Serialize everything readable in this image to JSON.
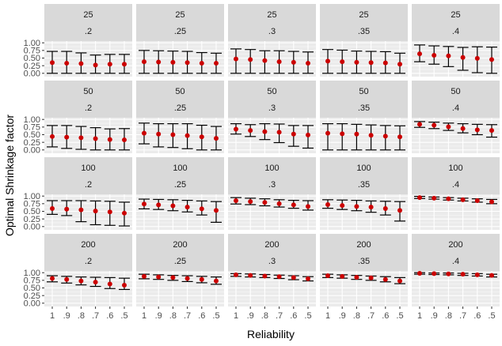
{
  "chart_data": {
    "type": "scatter",
    "subtype": "faceted point-range (points with error bars)",
    "xlabel": "Reliability",
    "ylabel": "Optimal Shrinkage factor",
    "x_categories": [
      "1",
      ".9",
      ".8",
      ".7",
      ".6",
      ".5"
    ],
    "y_ticks": [
      "0.00",
      "0.25",
      "0.50",
      "0.75",
      "1.00"
    ],
    "ylim": [
      0,
      1
    ],
    "grid": true,
    "point_color": "#cc0000",
    "errorbar_color": "#000000",
    "panel_background": "#ebebeb",
    "strip_background": "#d9d9d9",
    "facet_rows": [
      "25",
      "50",
      "100",
      "200"
    ],
    "facet_cols": [
      ".2",
      ".25",
      ".3",
      ".35",
      ".4"
    ],
    "panels": [
      {
        "row": "25",
        "col": ".2",
        "mean": [
          0.35,
          0.33,
          0.32,
          0.27,
          0.3,
          0.3
        ],
        "lower": [
          0.0,
          0.0,
          0.0,
          0.0,
          0.0,
          0.0
        ],
        "upper": [
          0.72,
          0.72,
          0.67,
          0.6,
          0.62,
          0.62
        ]
      },
      {
        "row": "25",
        "col": ".25",
        "mean": [
          0.38,
          0.37,
          0.36,
          0.35,
          0.33,
          0.33
        ],
        "lower": [
          0.0,
          0.0,
          0.0,
          0.0,
          0.0,
          0.0
        ],
        "upper": [
          0.75,
          0.74,
          0.73,
          0.72,
          0.68,
          0.66
        ]
      },
      {
        "row": "25",
        "col": ".3",
        "mean": [
          0.47,
          0.45,
          0.42,
          0.38,
          0.36,
          0.33
        ],
        "lower": [
          0.0,
          0.0,
          0.0,
          0.0,
          0.0,
          0.0
        ],
        "upper": [
          0.8,
          0.78,
          0.74,
          0.74,
          0.72,
          0.7
        ]
      },
      {
        "row": "25",
        "col": ".35",
        "mean": [
          0.4,
          0.38,
          0.36,
          0.35,
          0.34,
          0.3
        ],
        "lower": [
          0.0,
          0.0,
          0.0,
          0.0,
          0.0,
          0.0
        ],
        "upper": [
          0.78,
          0.76,
          0.73,
          0.72,
          0.71,
          0.66
        ]
      },
      {
        "row": "25",
        "col": ".4",
        "mean": [
          0.64,
          0.59,
          0.57,
          0.52,
          0.49,
          0.45
        ],
        "lower": [
          0.38,
          0.3,
          0.22,
          0.1,
          0.02,
          0.0
        ],
        "upper": [
          0.93,
          0.9,
          0.88,
          0.85,
          0.87,
          0.86
        ]
      },
      {
        "row": "50",
        "col": ".2",
        "mean": [
          0.44,
          0.42,
          0.4,
          0.37,
          0.34,
          0.33
        ],
        "lower": [
          0.1,
          0.05,
          0.02,
          0.0,
          0.0,
          0.0
        ],
        "upper": [
          0.8,
          0.8,
          0.77,
          0.73,
          0.69,
          0.7
        ]
      },
      {
        "row": "50",
        "col": ".25",
        "mean": [
          0.55,
          0.52,
          0.5,
          0.47,
          0.43,
          0.38
        ],
        "lower": [
          0.2,
          0.1,
          0.08,
          0.04,
          0.0,
          0.0
        ],
        "upper": [
          0.88,
          0.86,
          0.86,
          0.86,
          0.81,
          0.77
        ]
      },
      {
        "row": "50",
        "col": ".3",
        "mean": [
          0.68,
          0.64,
          0.6,
          0.58,
          0.52,
          0.49
        ],
        "lower": [
          0.52,
          0.44,
          0.34,
          0.24,
          0.12,
          0.06
        ],
        "upper": [
          0.86,
          0.83,
          0.86,
          0.85,
          0.8,
          0.8
        ]
      },
      {
        "row": "50",
        "col": ".35",
        "mean": [
          0.55,
          0.53,
          0.52,
          0.48,
          0.45,
          0.43
        ],
        "lower": [
          0.0,
          0.0,
          0.0,
          0.0,
          0.0,
          0.0
        ],
        "upper": [
          0.86,
          0.86,
          0.84,
          0.82,
          0.8,
          0.79
        ]
      },
      {
        "row": "50",
        "col": ".4",
        "mean": [
          0.84,
          0.81,
          0.76,
          0.7,
          0.66,
          0.64
        ],
        "lower": [
          0.74,
          0.7,
          0.64,
          0.56,
          0.5,
          0.42
        ],
        "upper": [
          0.93,
          0.91,
          0.88,
          0.86,
          0.84,
          0.83
        ]
      },
      {
        "row": "100",
        "col": ".2",
        "mean": [
          0.59,
          0.57,
          0.55,
          0.51,
          0.48,
          0.44
        ],
        "lower": [
          0.4,
          0.36,
          0.16,
          0.06,
          0.04,
          0.02
        ],
        "upper": [
          0.85,
          0.85,
          0.85,
          0.84,
          0.83,
          0.8
        ]
      },
      {
        "row": "100",
        "col": ".25",
        "mean": [
          0.74,
          0.71,
          0.68,
          0.64,
          0.58,
          0.53
        ],
        "lower": [
          0.58,
          0.56,
          0.52,
          0.48,
          0.38,
          0.14
        ],
        "upper": [
          0.9,
          0.89,
          0.88,
          0.86,
          0.84,
          0.82
        ]
      },
      {
        "row": "100",
        "col": ".3",
        "mean": [
          0.85,
          0.82,
          0.79,
          0.75,
          0.71,
          0.66
        ],
        "lower": [
          0.74,
          0.72,
          0.68,
          0.64,
          0.6,
          0.54
        ],
        "upper": [
          0.95,
          0.93,
          0.91,
          0.88,
          0.86,
          0.85
        ]
      },
      {
        "row": "100",
        "col": ".35",
        "mean": [
          0.72,
          0.69,
          0.66,
          0.64,
          0.59,
          0.53
        ],
        "lower": [
          0.6,
          0.56,
          0.52,
          0.47,
          0.38,
          0.18
        ],
        "upper": [
          0.88,
          0.87,
          0.86,
          0.84,
          0.83,
          0.82
        ]
      },
      {
        "row": "100",
        "col": ".4",
        "mean": [
          0.95,
          0.93,
          0.91,
          0.88,
          0.85,
          0.81
        ],
        "lower": [
          0.92,
          0.9,
          0.87,
          0.84,
          0.8,
          0.75
        ],
        "upper": [
          0.99,
          0.97,
          0.95,
          0.93,
          0.91,
          0.89
        ]
      },
      {
        "row": "200",
        "col": ".2",
        "mean": [
          0.81,
          0.78,
          0.73,
          0.69,
          0.63,
          0.59
        ],
        "lower": [
          0.7,
          0.66,
          0.6,
          0.55,
          0.48,
          0.45
        ],
        "upper": [
          0.9,
          0.88,
          0.86,
          0.85,
          0.84,
          0.82
        ]
      },
      {
        "row": "200",
        "col": ".25",
        "mean": [
          0.88,
          0.86,
          0.84,
          0.81,
          0.78,
          0.73
        ],
        "lower": [
          0.8,
          0.78,
          0.75,
          0.71,
          0.67,
          0.62
        ],
        "upper": [
          0.95,
          0.93,
          0.91,
          0.9,
          0.88,
          0.86
        ]
      },
      {
        "row": "200",
        "col": ".3",
        "mean": [
          0.93,
          0.91,
          0.89,
          0.87,
          0.84,
          0.8
        ],
        "lower": [
          0.88,
          0.86,
          0.84,
          0.81,
          0.77,
          0.73
        ],
        "upper": [
          0.97,
          0.96,
          0.94,
          0.92,
          0.9,
          0.87
        ]
      },
      {
        "row": "200",
        "col": ".35",
        "mean": [
          0.9,
          0.88,
          0.85,
          0.83,
          0.78,
          0.73
        ],
        "lower": [
          0.84,
          0.82,
          0.78,
          0.75,
          0.7,
          0.64
        ],
        "upper": [
          0.95,
          0.93,
          0.91,
          0.89,
          0.87,
          0.84
        ]
      },
      {
        "row": "200",
        "col": ".4",
        "mean": [
          0.98,
          0.97,
          0.96,
          0.95,
          0.93,
          0.91
        ],
        "lower": [
          0.95,
          0.94,
          0.93,
          0.91,
          0.89,
          0.86
        ],
        "upper": [
          1.0,
          0.99,
          0.99,
          0.98,
          0.97,
          0.95
        ]
      }
    ]
  }
}
